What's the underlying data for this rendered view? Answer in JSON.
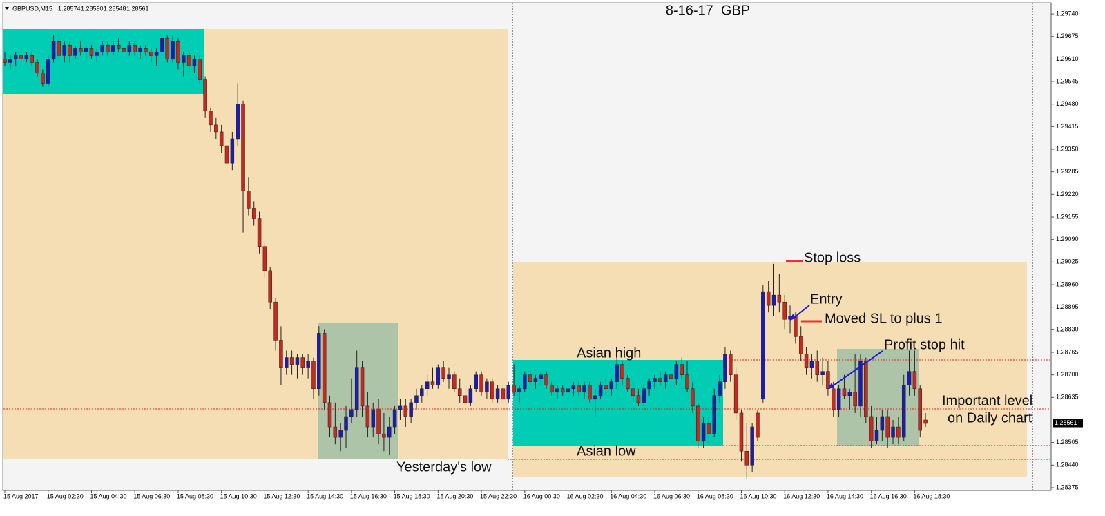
{
  "header": {
    "symbol": "GBPUSD,M15",
    "ohlc": [
      "1.28574",
      "1.28590",
      "1.28548",
      "1.28561"
    ]
  },
  "annotations": {
    "stop_loss": "Stop loss",
    "entry": "Entry",
    "moved_sl": "Moved SL to plus 1",
    "profit_stop": "Profit stop hit",
    "important_1": "Important level",
    "important_2": "on Daily chart",
    "asian_high": "Asian high",
    "asian_low": "Asian low",
    "yesterday_low": "Yesterday's low"
  },
  "chart_data": {
    "type": "candlestick",
    "title": "8-16-17  GBP",
    "up_color": "#1c1cb0",
    "down_color": "#c8281e",
    "xlim": [
      -0.3,
      193.2
    ],
    "ylim": [
      1.28367,
      1.29772
    ],
    "yticks": [
      {
        "value": 1.2974,
        "label": "1.29740"
      },
      {
        "value": 1.29675,
        "label": "1.29675"
      },
      {
        "value": 1.2961,
        "label": "1.29610"
      },
      {
        "value": 1.29545,
        "label": "1.29545"
      },
      {
        "value": 1.2948,
        "label": "1.29480"
      },
      {
        "value": 1.29415,
        "label": "1.29415"
      },
      {
        "value": 1.2935,
        "label": "1.29350"
      },
      {
        "value": 1.29285,
        "label": "1.29285"
      },
      {
        "value": 1.2922,
        "label": "1.29220"
      },
      {
        "value": 1.29155,
        "label": "1.29155"
      },
      {
        "value": 1.2909,
        "label": "1.29090"
      },
      {
        "value": 1.29025,
        "label": "1.29025"
      },
      {
        "value": 1.2896,
        "label": "1.28960"
      },
      {
        "value": 1.28895,
        "label": "1.28895"
      },
      {
        "value": 1.2883,
        "label": "1.28830"
      },
      {
        "value": 1.28765,
        "label": "1.28765"
      },
      {
        "value": 1.287,
        "label": "1.28700"
      },
      {
        "value": 1.28635,
        "label": "1.28635"
      },
      {
        "value": 1.28505,
        "label": "1.28505"
      },
      {
        "value": 1.2844,
        "label": "1.28440"
      },
      {
        "value": 1.28375,
        "label": "1.28375"
      }
    ],
    "xticks": [
      {
        "value": 0,
        "label": "15 Aug 2017"
      },
      {
        "value": 8,
        "label": "15 Aug 02:30"
      },
      {
        "value": 16,
        "label": "15 Aug 04:30"
      },
      {
        "value": 24,
        "label": "15 Aug 06:30"
      },
      {
        "value": 32,
        "label": "15 Aug 08:30"
      },
      {
        "value": 40,
        "label": "15 Aug 10:30"
      },
      {
        "value": 48,
        "label": "15 Aug 12:30"
      },
      {
        "value": 56,
        "label": "15 Aug 14:30"
      },
      {
        "value": 64,
        "label": "15 Aug 16:30"
      },
      {
        "value": 72,
        "label": "15 Aug 18:30"
      },
      {
        "value": 80,
        "label": "15 Aug 20:30"
      },
      {
        "value": 88,
        "label": "15 Aug 22:30"
      },
      {
        "value": 96,
        "label": "16 Aug 00:30"
      },
      {
        "value": 104,
        "label": "16 Aug 02:30"
      },
      {
        "value": 112,
        "label": "16 Aug 04:30"
      },
      {
        "value": 120,
        "label": "16 Aug 06:30"
      },
      {
        "value": 128,
        "label": "16 Aug 08:30"
      },
      {
        "value": 136,
        "label": "16 Aug 10:30"
      },
      {
        "value": 144,
        "label": "16 Aug 12:30"
      },
      {
        "value": 152,
        "label": "16 Aug 14:30"
      },
      {
        "value": 160,
        "label": "16 Aug 16:30"
      },
      {
        "value": 168,
        "label": "16 Aug 18:30"
      }
    ],
    "current_price": {
      "value": 1.28561,
      "label": "1.28561"
    },
    "ohlc": [
      [
        1.2961,
        1.2963,
        1.2959,
        1.296
      ],
      [
        1.296,
        1.2962,
        1.2958,
        1.2961
      ],
      [
        1.2961,
        1.2963,
        1.2959,
        1.2962
      ],
      [
        1.2962,
        1.2964,
        1.296,
        1.2961
      ],
      [
        1.2961,
        1.2963,
        1.296,
        1.2962
      ],
      [
        1.2962,
        1.2963,
        1.2959,
        1.296
      ],
      [
        1.296,
        1.2961,
        1.2956,
        1.2957
      ],
      [
        1.2957,
        1.2958,
        1.2953,
        1.2954
      ],
      [
        1.2954,
        1.2962,
        1.2953,
        1.2961
      ],
      [
        1.2961,
        1.2968,
        1.296,
        1.2966
      ],
      [
        1.2966,
        1.2968,
        1.2961,
        1.2962
      ],
      [
        1.2962,
        1.2966,
        1.296,
        1.2965
      ],
      [
        1.2965,
        1.2966,
        1.296,
        1.2962
      ],
      [
        1.2962,
        1.2965,
        1.2961,
        1.2964
      ],
      [
        1.2964,
        1.2966,
        1.2962,
        1.2963
      ],
      [
        1.2963,
        1.2965,
        1.2961,
        1.2964
      ],
      [
        1.2964,
        1.2965,
        1.2961,
        1.2962
      ],
      [
        1.2962,
        1.2964,
        1.296,
        1.2963
      ],
      [
        1.2963,
        1.2966,
        1.2962,
        1.2965
      ],
      [
        1.2965,
        1.2966,
        1.2962,
        1.2963
      ],
      [
        1.2963,
        1.2966,
        1.2962,
        1.2965
      ],
      [
        1.2965,
        1.2967,
        1.2963,
        1.2964
      ],
      [
        1.2964,
        1.2966,
        1.2962,
        1.2963
      ],
      [
        1.2963,
        1.2966,
        1.2962,
        1.2965
      ],
      [
        1.2965,
        1.2966,
        1.2962,
        1.2963
      ],
      [
        1.2963,
        1.2965,
        1.2961,
        1.2964
      ],
      [
        1.2964,
        1.2965,
        1.2962,
        1.2963
      ],
      [
        1.2963,
        1.2964,
        1.296,
        1.2962
      ],
      [
        1.2962,
        1.2964,
        1.2959,
        1.2963
      ],
      [
        1.2963,
        1.2968,
        1.2962,
        1.2967
      ],
      [
        1.2967,
        1.2968,
        1.296,
        1.2961
      ],
      [
        1.2961,
        1.2968,
        1.296,
        1.2966
      ],
      [
        1.2966,
        1.2967,
        1.2958,
        1.296
      ],
      [
        1.296,
        1.2963,
        1.2956,
        1.2962
      ],
      [
        1.2962,
        1.2963,
        1.2957,
        1.2959
      ],
      [
        1.2959,
        1.2962,
        1.2957,
        1.2961
      ],
      [
        1.2961,
        1.2962,
        1.2954,
        1.2955
      ],
      [
        1.2955,
        1.2956,
        1.2944,
        1.2946
      ],
      [
        1.2946,
        1.2947,
        1.294,
        1.2942
      ],
      [
        1.2942,
        1.2944,
        1.2938,
        1.294
      ],
      [
        1.294,
        1.2942,
        1.2934,
        1.2936
      ],
      [
        1.2936,
        1.2939,
        1.293,
        1.2931
      ],
      [
        1.2931,
        1.294,
        1.2929,
        1.2938
      ],
      [
        1.2938,
        1.2954,
        1.2936,
        1.2948
      ],
      [
        1.2948,
        1.2949,
        1.2911,
        1.2923
      ],
      [
        1.2923,
        1.2927,
        1.2916,
        1.2918
      ],
      [
        1.2918,
        1.292,
        1.2913,
        1.2915
      ],
      [
        1.2915,
        1.2917,
        1.2905,
        1.2907
      ],
      [
        1.2907,
        1.2908,
        1.2898,
        1.29
      ],
      [
        1.29,
        1.2901,
        1.2889,
        1.2891
      ],
      [
        1.2891,
        1.2892,
        1.2877,
        1.288
      ],
      [
        1.288,
        1.2884,
        1.2867,
        1.2872
      ],
      [
        1.2872,
        1.2877,
        1.287,
        1.2875
      ],
      [
        1.2875,
        1.2877,
        1.287,
        1.2873
      ],
      [
        1.2873,
        1.2876,
        1.2869,
        1.2875
      ],
      [
        1.2875,
        1.2876,
        1.287,
        1.2872
      ],
      [
        1.2872,
        1.2876,
        1.2869,
        1.2874
      ],
      [
        1.2874,
        1.2875,
        1.2863,
        1.2866
      ],
      [
        1.2866,
        1.2884,
        1.2864,
        1.2882
      ],
      [
        1.2882,
        1.2883,
        1.286,
        1.2862
      ],
      [
        1.2862,
        1.2864,
        1.2852,
        1.2855
      ],
      [
        1.2855,
        1.2862,
        1.285,
        1.2852
      ],
      [
        1.2852,
        1.2856,
        1.2848,
        1.2854
      ],
      [
        1.2854,
        1.2861,
        1.2849,
        1.2858
      ],
      [
        1.2858,
        1.2869,
        1.2856,
        1.286
      ],
      [
        1.286,
        1.2877,
        1.2858,
        1.2872
      ],
      [
        1.2872,
        1.2874,
        1.2858,
        1.2861
      ],
      [
        1.2861,
        1.2865,
        1.2852,
        1.2855
      ],
      [
        1.2855,
        1.2862,
        1.2852,
        1.286
      ],
      [
        1.286,
        1.2863,
        1.285,
        1.2853
      ],
      [
        1.2853,
        1.2859,
        1.2848,
        1.2852
      ],
      [
        1.2852,
        1.2858,
        1.2847,
        1.2855
      ],
      [
        1.2855,
        1.2861,
        1.2853,
        1.286
      ],
      [
        1.286,
        1.2863,
        1.2857,
        1.2861
      ],
      [
        1.2861,
        1.2863,
        1.2855,
        1.2858
      ],
      [
        1.2858,
        1.2863,
        1.2856,
        1.2862
      ],
      [
        1.2862,
        1.2866,
        1.286,
        1.2864
      ],
      [
        1.2864,
        1.2867,
        1.2862,
        1.2866
      ],
      [
        1.2866,
        1.287,
        1.2864,
        1.2868
      ],
      [
        1.2868,
        1.2872,
        1.2866,
        1.2867
      ],
      [
        1.2867,
        1.2873,
        1.2866,
        1.2872
      ],
      [
        1.2872,
        1.2874,
        1.2868,
        1.2869
      ],
      [
        1.2869,
        1.2872,
        1.2866,
        1.287
      ],
      [
        1.287,
        1.2871,
        1.2865,
        1.2866
      ],
      [
        1.2866,
        1.2869,
        1.2862,
        1.2864
      ],
      [
        1.2864,
        1.2866,
        1.2861,
        1.2862
      ],
      [
        1.2862,
        1.2867,
        1.2861,
        1.2866
      ],
      [
        1.2866,
        1.2871,
        1.2865,
        1.287
      ],
      [
        1.287,
        1.2871,
        1.2864,
        1.2865
      ],
      [
        1.2865,
        1.2869,
        1.2863,
        1.2868
      ],
      [
        1.2868,
        1.2869,
        1.2862,
        1.2863
      ],
      [
        1.2863,
        1.2867,
        1.2862,
        1.2866
      ],
      [
        1.2866,
        1.2867,
        1.2862,
        1.2863
      ],
      [
        1.2863,
        1.2868,
        1.2862,
        1.2867
      ],
      [
        1.2867,
        1.2873,
        1.2864,
        1.2865
      ],
      [
        1.2865,
        1.2867,
        1.2862,
        1.2866
      ],
      [
        1.2866,
        1.2871,
        1.2865,
        1.287
      ],
      [
        1.287,
        1.2871,
        1.2867,
        1.2868
      ],
      [
        1.2868,
        1.287,
        1.2866,
        1.2869
      ],
      [
        1.2869,
        1.2871,
        1.2867,
        1.287
      ],
      [
        1.287,
        1.2871,
        1.2866,
        1.2867
      ],
      [
        1.2867,
        1.2868,
        1.2864,
        1.2865
      ],
      [
        1.2865,
        1.2867,
        1.2863,
        1.2866
      ],
      [
        1.2866,
        1.2867,
        1.2864,
        1.2865
      ],
      [
        1.2865,
        1.2867,
        1.2863,
        1.2866
      ],
      [
        1.2866,
        1.2868,
        1.2864,
        1.2867
      ],
      [
        1.2867,
        1.2868,
        1.2864,
        1.2865
      ],
      [
        1.2865,
        1.2868,
        1.2863,
        1.2867
      ],
      [
        1.2867,
        1.2868,
        1.2862,
        1.2863
      ],
      [
        1.2863,
        1.2866,
        1.2858,
        1.2864
      ],
      [
        1.2864,
        1.2868,
        1.2863,
        1.2867
      ],
      [
        1.2867,
        1.2869,
        1.2864,
        1.2866
      ],
      [
        1.2866,
        1.2869,
        1.2864,
        1.2868
      ],
      [
        1.2868,
        1.2875,
        1.2866,
        1.2873
      ],
      [
        1.2873,
        1.2874,
        1.2867,
        1.2869
      ],
      [
        1.2869,
        1.287,
        1.2865,
        1.2866
      ],
      [
        1.2866,
        1.2868,
        1.2862,
        1.2864
      ],
      [
        1.2864,
        1.2866,
        1.2861,
        1.2862
      ],
      [
        1.2862,
        1.2867,
        1.2861,
        1.2866
      ],
      [
        1.2866,
        1.2869,
        1.2864,
        1.2868
      ],
      [
        1.2868,
        1.287,
        1.2866,
        1.2869
      ],
      [
        1.2869,
        1.2871,
        1.2867,
        1.2868
      ],
      [
        1.2868,
        1.2871,
        1.2866,
        1.287
      ],
      [
        1.287,
        1.2872,
        1.2868,
        1.2869
      ],
      [
        1.2869,
        1.2874,
        1.2867,
        1.2873
      ],
      [
        1.2873,
        1.2875,
        1.2869,
        1.287
      ],
      [
        1.287,
        1.2874,
        1.2865,
        1.2866
      ],
      [
        1.2866,
        1.2868,
        1.2859,
        1.2861
      ],
      [
        1.2861,
        1.2862,
        1.2849,
        1.2851
      ],
      [
        1.2851,
        1.2858,
        1.2849,
        1.2856
      ],
      [
        1.2856,
        1.2858,
        1.285,
        1.2853
      ],
      [
        1.2853,
        1.2866,
        1.2852,
        1.2864
      ],
      [
        1.2864,
        1.287,
        1.2862,
        1.2868
      ],
      [
        1.2868,
        1.2878,
        1.2866,
        1.2876
      ],
      [
        1.2876,
        1.2877,
        1.2868,
        1.287
      ],
      [
        1.287,
        1.2872,
        1.2857,
        1.2859
      ],
      [
        1.2859,
        1.286,
        1.2845,
        1.2848
      ],
      [
        1.2848,
        1.2856,
        1.284,
        1.2844
      ],
      [
        1.2844,
        1.2856,
        1.2842,
        1.2855
      ],
      [
        1.2859,
        1.286,
        1.2851,
        1.2852
      ],
      [
        1.2863,
        1.2896,
        1.2862,
        1.2894
      ],
      [
        1.2894,
        1.2897,
        1.2888,
        1.289
      ],
      [
        1.289,
        1.2902,
        1.2887,
        1.2893
      ],
      [
        1.2893,
        1.2899,
        1.2888,
        1.2891
      ],
      [
        1.2891,
        1.2893,
        1.2883,
        1.2886
      ],
      [
        1.2886,
        1.289,
        1.2882,
        1.2887
      ],
      [
        1.2887,
        1.2888,
        1.2879,
        1.2881
      ],
      [
        1.2881,
        1.2884,
        1.2874,
        1.2876
      ],
      [
        1.2876,
        1.2878,
        1.287,
        1.2872
      ],
      [
        1.2872,
        1.2876,
        1.2869,
        1.2874
      ],
      [
        1.2874,
        1.2877,
        1.2868,
        1.287
      ],
      [
        1.287,
        1.2875,
        1.2867,
        1.2871
      ],
      [
        1.2871,
        1.2874,
        1.2864,
        1.2866
      ],
      [
        1.2866,
        1.2868,
        1.2858,
        1.286
      ],
      [
        1.286,
        1.2867,
        1.2858,
        1.2866
      ],
      [
        1.2866,
        1.287,
        1.2863,
        1.2864
      ],
      [
        1.2864,
        1.2866,
        1.286,
        1.2865
      ],
      [
        1.2865,
        1.2876,
        1.2859,
        1.2861
      ],
      [
        1.2861,
        1.2876,
        1.2858,
        1.2874
      ],
      [
        1.2874,
        1.2875,
        1.2856,
        1.2858
      ],
      [
        1.2858,
        1.2861,
        1.2849,
        1.2851
      ],
      [
        1.2851,
        1.2858,
        1.285,
        1.2854
      ],
      [
        1.2854,
        1.286,
        1.2851,
        1.2858
      ],
      [
        1.2858,
        1.286,
        1.2849,
        1.2852
      ],
      [
        1.2852,
        1.2857,
        1.285,
        1.2855
      ],
      [
        1.2855,
        1.2858,
        1.285,
        1.2852
      ],
      [
        1.2852,
        1.287,
        1.2851,
        1.2867
      ],
      [
        1.2867,
        1.2877,
        1.2864,
        1.2871
      ],
      [
        1.2871,
        1.2877,
        1.2864,
        1.2866
      ],
      [
        1.2866,
        1.2867,
        1.2852,
        1.2854
      ],
      [
        1.2857,
        1.2859,
        1.2855,
        1.2856
      ]
    ]
  }
}
